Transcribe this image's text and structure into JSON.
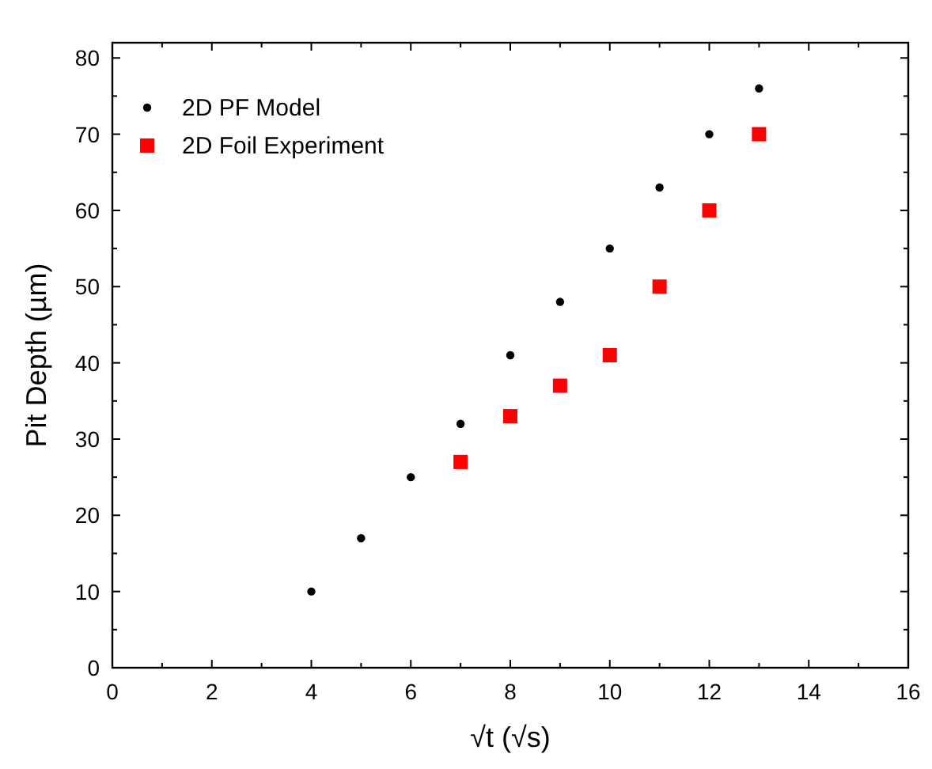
{
  "chart_data": {
    "type": "scatter",
    "xlabel": "√t (√s)",
    "ylabel": "Pit Depth (µm)",
    "xlim": [
      0,
      16
    ],
    "ylim": [
      0,
      82
    ],
    "xticks": [
      0,
      {
        "value": 1,
        "label": null
      },
      2,
      {
        "value": 3,
        "label": null
      },
      4,
      {
        "value": 5,
        "label": null
      },
      6,
      {
        "value": 7,
        "label": null
      },
      8,
      {
        "value": 9,
        "label": null
      },
      10,
      {
        "value": 11,
        "label": null
      },
      12,
      {
        "value": 13,
        "label": null
      },
      14,
      {
        "value": 15,
        "label": null
      },
      16
    ],
    "yticks": [
      0,
      {
        "value": 5,
        "label": null
      },
      10,
      {
        "value": 15,
        "label": null
      },
      20,
      {
        "value": 25,
        "label": null
      },
      30,
      {
        "value": 35,
        "label": null
      },
      40,
      {
        "value": 45,
        "label": null
      },
      50,
      {
        "value": 55,
        "label": null
      },
      60,
      {
        "value": 65,
        "label": null
      },
      70,
      {
        "value": 75,
        "label": null
      },
      80
    ],
    "grid": false,
    "legend": "top left",
    "series": [
      {
        "name": "2D PF Model",
        "color": "#000000",
        "marker": "circle",
        "x": [
          4,
          5,
          6,
          7,
          8,
          9,
          10,
          11,
          12,
          13
        ],
        "values": [
          10,
          17,
          25,
          32,
          41,
          48,
          55,
          63,
          70,
          76
        ]
      },
      {
        "name": "2D Foil Experiment",
        "color": "#ff0000",
        "marker": "square",
        "x": [
          7,
          8,
          9,
          10,
          11,
          12,
          13
        ],
        "values": [
          27,
          33,
          37,
          41,
          50,
          60,
          70
        ]
      }
    ]
  }
}
